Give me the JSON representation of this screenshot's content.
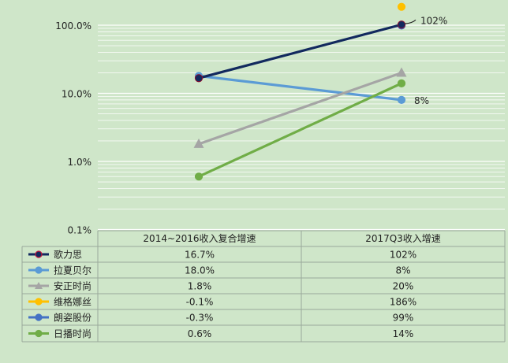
{
  "chart_data": {
    "type": "line",
    "title": "",
    "xlabel": "",
    "ylabel": "",
    "yscale": "log",
    "ylim": [
      0.001,
      1.0
    ],
    "yticks": [
      "0.1%",
      "1.0%",
      "10.0%",
      "100.0%"
    ],
    "categories": [
      "2014~2016收入复合增速",
      "2017Q3收入增速"
    ],
    "legend": "table-left",
    "grid": true,
    "series": [
      {
        "name": "歌力思",
        "color": "#12295e",
        "marker": "circle",
        "values": [
          0.167,
          1.02
        ],
        "labels": [
          "16.7%",
          "102%"
        ]
      },
      {
        "name": "拉夏贝尔",
        "color": "#5b9bd5",
        "marker": "circle",
        "values": [
          0.18,
          0.08
        ],
        "labels": [
          "18.0%",
          "8%"
        ]
      },
      {
        "name": "安正时尚",
        "color": "#a5a5a5",
        "marker": "triangle",
        "values": [
          0.018,
          0.2
        ],
        "labels": [
          "1.8%",
          "20%"
        ]
      },
      {
        "name": "维格娜丝",
        "color": "#ffc000",
        "marker": "circle",
        "values": [
          -0.001,
          1.86
        ],
        "labels": [
          "-0.1%",
          "186%"
        ]
      },
      {
        "name": "朗姿股份",
        "color": "#4472c4",
        "marker": "circle",
        "values": [
          -0.003,
          0.99
        ],
        "labels": [
          "-0.3%",
          "99%"
        ]
      },
      {
        "name": "日播时尚",
        "color": "#70ad47",
        "marker": "circle",
        "values": [
          0.006,
          0.14
        ],
        "labels": [
          "0.6%",
          "14%"
        ]
      }
    ],
    "annotations": [
      "102%",
      "8%"
    ]
  }
}
